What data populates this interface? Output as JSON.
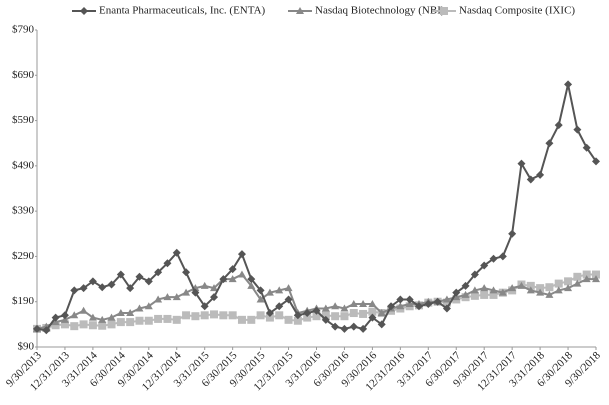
{
  "chart_data": {
    "type": "line",
    "categories": [
      "9/30/2013",
      null,
      null,
      "12/31/2013",
      null,
      null,
      "3/31/2014",
      null,
      null,
      "6/30/2014",
      null,
      null,
      "9/30/2014",
      null,
      null,
      "12/31/2014",
      null,
      null,
      "3/31/2015",
      null,
      null,
      "6/30/2015",
      null,
      null,
      "9/30/2015",
      null,
      null,
      "12/31/2015",
      null,
      null,
      "3/31/2016",
      null,
      null,
      "6/30/2016",
      null,
      null,
      "9/30/2016",
      null,
      null,
      "12/31/2016",
      null,
      null,
      "3/31/2017",
      null,
      null,
      "6/30/2017",
      null,
      null,
      "9/30/2017",
      null,
      null,
      "12/31/2017",
      null,
      null,
      "3/31/2018",
      null,
      null,
      "6/30/2018",
      null,
      null,
      "9/30/2018"
    ],
    "series": [
      {
        "name": "Enanta Pharmaceuticals, Inc. (ENTA)",
        "color": "#555555",
        "marker": "diamond",
        "values": [
          130,
          127,
          155,
          160,
          215,
          220,
          235,
          222,
          228,
          250,
          220,
          245,
          235,
          255,
          275,
          298,
          255,
          210,
          180,
          200,
          240,
          262,
          295,
          240,
          215,
          165,
          180,
          195,
          160,
          165,
          170,
          150,
          135,
          130,
          135,
          130,
          155,
          140,
          180,
          195,
          195,
          180,
          185,
          190,
          175,
          210,
          225,
          250,
          270,
          285,
          290,
          340,
          495,
          460,
          470,
          540,
          580,
          670,
          570,
          530,
          500
        ]
      },
      {
        "name": "Nasdaq Biotechnology (NBI)",
        "color": "#888888",
        "marker": "triangle",
        "values": [
          130,
          135,
          145,
          150,
          160,
          170,
          155,
          150,
          155,
          165,
          165,
          175,
          180,
          195,
          200,
          200,
          210,
          220,
          225,
          220,
          240,
          240,
          250,
          225,
          195,
          210,
          215,
          220,
          165,
          170,
          175,
          175,
          180,
          175,
          185,
          185,
          185,
          165,
          175,
          180,
          185,
          185,
          190,
          190,
          195,
          200,
          205,
          215,
          220,
          215,
          210,
          220,
          225,
          215,
          210,
          205,
          215,
          220,
          230,
          240,
          240
        ]
      },
      {
        "name": "Nasdaq Composite (IXIC)",
        "color": "#bbbbbb",
        "marker": "square",
        "values": [
          130,
          132,
          138,
          140,
          136,
          140,
          138,
          137,
          140,
          145,
          145,
          148,
          148,
          152,
          152,
          150,
          160,
          158,
          160,
          162,
          160,
          160,
          150,
          150,
          160,
          155,
          160,
          150,
          148,
          155,
          158,
          160,
          158,
          158,
          165,
          163,
          168,
          165,
          170,
          175,
          180,
          182,
          188,
          190,
          188,
          195,
          200,
          203,
          205,
          205,
          210,
          215,
          228,
          225,
          220,
          222,
          230,
          235,
          245,
          250,
          250
        ]
      }
    ],
    "ylim": [
      90,
      790
    ],
    "yticks": [
      {
        "value": 90,
        "label": "$90"
      },
      {
        "value": 190,
        "label": "$190"
      },
      {
        "value": 290,
        "label": "$290"
      },
      {
        "value": 390,
        "label": "$390"
      },
      {
        "value": 490,
        "label": "$490"
      },
      {
        "value": 590,
        "label": "$590"
      },
      {
        "value": 690,
        "label": "$690"
      },
      {
        "value": 790,
        "label": "$790"
      }
    ],
    "grid": false
  }
}
